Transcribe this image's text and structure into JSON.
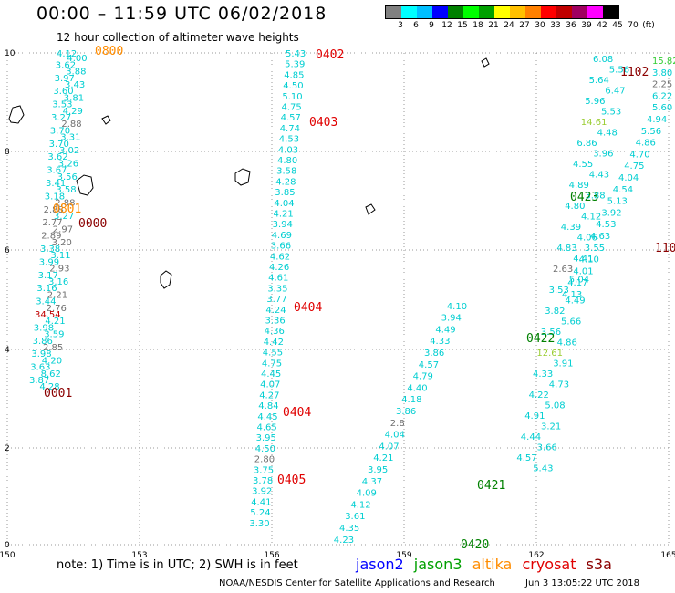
{
  "header": {
    "title": "00:00 – 11:59 UTC 06/02/2018",
    "subtitle": "12 hour collection of altimeter wave heights"
  },
  "legend": {
    "colors": [
      "#808080",
      "#00ffff",
      "#00bfff",
      "#0000ff",
      "#008000",
      "#00ff00",
      "#00a000",
      "#ffff00",
      "#ffc000",
      "#ff8000",
      "#ff0000",
      "#c00000",
      "#a00060",
      "#ff00ff",
      "#000000"
    ],
    "labels": [
      "3",
      "6",
      "9",
      "12",
      "15",
      "18",
      "21",
      "24",
      "27",
      "30",
      "33",
      "36",
      "39",
      "42",
      "45",
      "70",
      "(ft)"
    ]
  },
  "axes": {
    "x_ticks": [
      "150",
      "153",
      "156",
      "159",
      "162",
      "165"
    ],
    "y_ticks": [
      "0",
      "2",
      "4",
      "6",
      "8",
      "10"
    ]
  },
  "islands": [
    [
      [
        10,
        130
      ],
      [
        14,
        118
      ],
      [
        22,
        116
      ],
      [
        26,
        126
      ],
      [
        20,
        135
      ],
      [
        12,
        134
      ]
    ],
    [
      [
        112,
        130
      ],
      [
        118,
        127
      ],
      [
        121,
        132
      ],
      [
        116,
        136
      ]
    ],
    [
      [
        84,
        198
      ],
      [
        92,
        192
      ],
      [
        100,
        194
      ],
      [
        102,
        206
      ],
      [
        96,
        214
      ],
      [
        88,
        212
      ]
    ],
    [
      [
        258,
        190
      ],
      [
        266,
        185
      ],
      [
        274,
        188
      ],
      [
        272,
        200
      ],
      [
        264,
        203
      ],
      [
        258,
        198
      ]
    ],
    [
      [
        176,
        302
      ],
      [
        182,
        297
      ],
      [
        188,
        301
      ],
      [
        186,
        312
      ],
      [
        180,
        316
      ],
      [
        176,
        310
      ]
    ],
    [
      [
        401,
        227
      ],
      [
        407,
        224
      ],
      [
        411,
        230
      ],
      [
        404,
        235
      ]
    ],
    [
      [
        528,
        67
      ],
      [
        533,
        64
      ],
      [
        536,
        70
      ],
      [
        531,
        73
      ]
    ]
  ],
  "annotations": {
    "tracks": [
      {
        "label": "0800",
        "color": "#ff8c00"
      },
      {
        "label": "0801",
        "color": "#ff8c00"
      },
      {
        "label": "0000",
        "color": "#8b0000"
      },
      {
        "label": "0001",
        "color": "#8b0000"
      },
      {
        "label": "0402",
        "color": "#e00000"
      },
      {
        "label": "0403",
        "color": "#e00000"
      },
      {
        "label": "0404",
        "color": "#e00000"
      },
      {
        "label": "0404",
        "color": "#e00000"
      },
      {
        "label": "0405",
        "color": "#e00000"
      },
      {
        "label": "1102",
        "color": "#8b0000"
      },
      {
        "label": "110",
        "color": "#8b0000"
      },
      {
        "label": "0423",
        "color": "#008000"
      },
      {
        "label": "0422",
        "color": "#008000"
      },
      {
        "label": "0421",
        "color": "#008000"
      },
      {
        "label": "0420",
        "color": "#008000"
      }
    ],
    "values": [
      {
        "v": "4.12",
        "c": "#00ced1"
      },
      {
        "v": "4.00",
        "c": "#00ced1"
      },
      {
        "v": "3.62",
        "c": "#00ced1"
      },
      {
        "v": "3.88",
        "c": "#00ced1"
      },
      {
        "v": "3.97",
        "c": "#00ced1"
      },
      {
        "v": "3.43",
        "c": "#00ced1"
      },
      {
        "v": "3.60",
        "c": "#00ced1"
      },
      {
        "v": "3.81",
        "c": "#00ced1"
      },
      {
        "v": "3.53",
        "c": "#00ced1"
      },
      {
        "v": "4.29",
        "c": "#00ced1"
      },
      {
        "v": "3.27",
        "c": "#00ced1"
      },
      {
        "v": "2.88",
        "c": "#707070"
      },
      {
        "v": "3.70",
        "c": "#00ced1"
      },
      {
        "v": "3.31",
        "c": "#00ced1"
      },
      {
        "v": "3.70",
        "c": "#00ced1"
      },
      {
        "v": "3.02",
        "c": "#00ced1"
      },
      {
        "v": "3.62",
        "c": "#00ced1"
      },
      {
        "v": "3.26",
        "c": "#00ced1"
      },
      {
        "v": "3.67",
        "c": "#00ced1"
      },
      {
        "v": "3.56",
        "c": "#00ced1"
      },
      {
        "v": "3.41",
        "c": "#00ced1"
      },
      {
        "v": "3.58",
        "c": "#00ced1"
      },
      {
        "v": "3.18",
        "c": "#00ced1"
      },
      {
        "v": "2.88",
        "c": "#707070"
      },
      {
        "v": "2.88",
        "c": "#707070"
      },
      {
        "v": "3.27",
        "c": "#00ced1"
      },
      {
        "v": "2.77",
        "c": "#707070"
      },
      {
        "v": "2.97",
        "c": "#707070"
      },
      {
        "v": "2.89",
        "c": "#707070"
      },
      {
        "v": "3.20",
        "c": "#707070"
      },
      {
        "v": "3.38",
        "c": "#00ced1"
      },
      {
        "v": "3.11",
        "c": "#00ced1"
      },
      {
        "v": "3.99",
        "c": "#00ced1"
      },
      {
        "v": "2.93",
        "c": "#707070"
      },
      {
        "v": "3.17",
        "c": "#00ced1"
      },
      {
        "v": "3.16",
        "c": "#00ced1"
      },
      {
        "v": "3.16",
        "c": "#00ced1"
      },
      {
        "v": "2.21",
        "c": "#707070"
      },
      {
        "v": "3.44",
        "c": "#00ced1"
      },
      {
        "v": "2.76",
        "c": "#707070"
      },
      {
        "v": "34.54",
        "c": "#c00000"
      },
      {
        "v": "4.21",
        "c": "#00ced1"
      },
      {
        "v": "3.98",
        "c": "#00ced1"
      },
      {
        "v": "3.59",
        "c": "#00ced1"
      },
      {
        "v": "3.86",
        "c": "#00ced1"
      },
      {
        "v": "2.85",
        "c": "#707070"
      },
      {
        "v": "3.98",
        "c": "#00ced1"
      },
      {
        "v": "4.20",
        "c": "#00ced1"
      },
      {
        "v": "3.63",
        "c": "#00ced1"
      },
      {
        "v": "8.62",
        "c": "#00ced1"
      },
      {
        "v": "3.87",
        "c": "#00ced1"
      },
      {
        "v": "4.28",
        "c": "#00ced1"
      },
      {
        "v": "5.43",
        "c": "#00ced1"
      },
      {
        "v": "5.39",
        "c": "#00ced1"
      },
      {
        "v": "4.85",
        "c": "#00ced1"
      },
      {
        "v": "4.50",
        "c": "#00ced1"
      },
      {
        "v": "5.10",
        "c": "#00ced1"
      },
      {
        "v": "4.75",
        "c": "#00ced1"
      },
      {
        "v": "4.57",
        "c": "#00ced1"
      },
      {
        "v": "4.74",
        "c": "#00ced1"
      },
      {
        "v": "4.53",
        "c": "#00ced1"
      },
      {
        "v": "4.03",
        "c": "#00ced1"
      },
      {
        "v": "4.80",
        "c": "#00ced1"
      },
      {
        "v": "3.58",
        "c": "#00ced1"
      },
      {
        "v": "4.28",
        "c": "#00ced1"
      },
      {
        "v": "3.85",
        "c": "#00ced1"
      },
      {
        "v": "4.04",
        "c": "#00ced1"
      },
      {
        "v": "4.21",
        "c": "#00ced1"
      },
      {
        "v": "3.94",
        "c": "#00ced1"
      },
      {
        "v": "4.69",
        "c": "#00ced1"
      },
      {
        "v": "3.66",
        "c": "#00ced1"
      },
      {
        "v": "4.62",
        "c": "#00ced1"
      },
      {
        "v": "4.26",
        "c": "#00ced1"
      },
      {
        "v": "4.61",
        "c": "#00ced1"
      },
      {
        "v": "3.35",
        "c": "#00ced1"
      },
      {
        "v": "3.77",
        "c": "#00ced1"
      },
      {
        "v": "4.24",
        "c": "#00ced1"
      },
      {
        "v": "3.36",
        "c": "#00ced1"
      },
      {
        "v": "4.36",
        "c": "#00ced1"
      },
      {
        "v": "4.42",
        "c": "#00ced1"
      },
      {
        "v": "4.55",
        "c": "#00ced1"
      },
      {
        "v": "4.75",
        "c": "#00ced1"
      },
      {
        "v": "4.45",
        "c": "#00ced1"
      },
      {
        "v": "4.07",
        "c": "#00ced1"
      },
      {
        "v": "4.27",
        "c": "#00ced1"
      },
      {
        "v": "4.84",
        "c": "#00ced1"
      },
      {
        "v": "4.45",
        "c": "#00ced1"
      },
      {
        "v": "4.65",
        "c": "#00ced1"
      },
      {
        "v": "3.95",
        "c": "#00ced1"
      },
      {
        "v": "4.50",
        "c": "#00ced1"
      },
      {
        "v": "2.80",
        "c": "#707070"
      },
      {
        "v": "3.75",
        "c": "#00ced1"
      },
      {
        "v": "3.78",
        "c": "#00ced1"
      },
      {
        "v": "3.92",
        "c": "#00ced1"
      },
      {
        "v": "4.41",
        "c": "#00ced1"
      },
      {
        "v": "5.24",
        "c": "#00ced1"
      },
      {
        "v": "3.30",
        "c": "#00ced1"
      },
      {
        "v": "6.08",
        "c": "#00ced1"
      },
      {
        "v": "5.56",
        "c": "#00ced1"
      },
      {
        "v": "5.64",
        "c": "#00ced1"
      },
      {
        "v": "6.47",
        "c": "#00ced1"
      },
      {
        "v": "5.96",
        "c": "#00ced1"
      },
      {
        "v": "5.53",
        "c": "#00ced1"
      },
      {
        "v": "14.61",
        "c": "#9acd32"
      },
      {
        "v": "4.48",
        "c": "#00ced1"
      },
      {
        "v": "6.86",
        "c": "#00ced1"
      },
      {
        "v": "3.96",
        "c": "#00ced1"
      },
      {
        "v": "4.55",
        "c": "#00ced1"
      },
      {
        "v": "4.43",
        "c": "#00ced1"
      },
      {
        "v": "4.89",
        "c": "#00ced1"
      },
      {
        "v": "3.88",
        "c": "#00ced1"
      },
      {
        "v": "4.80",
        "c": "#00ced1"
      },
      {
        "v": "4.12",
        "c": "#00ced1"
      },
      {
        "v": "4.39",
        "c": "#00ced1"
      },
      {
        "v": "4.06",
        "c": "#00ced1"
      },
      {
        "v": "4.83",
        "c": "#00ced1"
      },
      {
        "v": "4.41",
        "c": "#00ced1"
      },
      {
        "v": "2.63",
        "c": "#707070"
      },
      {
        "v": "5.04",
        "c": "#00ced1"
      },
      {
        "v": "3.53",
        "c": "#00ced1"
      },
      {
        "v": "4.49",
        "c": "#00ced1"
      },
      {
        "v": "3.82",
        "c": "#00ced1"
      },
      {
        "v": "5.66",
        "c": "#00ced1"
      },
      {
        "v": "3.56",
        "c": "#00ced1"
      },
      {
        "v": "4.86",
        "c": "#00ced1"
      },
      {
        "v": "12.61",
        "c": "#9acd32"
      },
      {
        "v": "3.91",
        "c": "#00ced1"
      },
      {
        "v": "4.33",
        "c": "#00ced1"
      },
      {
        "v": "4.73",
        "c": "#00ced1"
      },
      {
        "v": "4.22",
        "c": "#00ced1"
      },
      {
        "v": "5.08",
        "c": "#00ced1"
      },
      {
        "v": "4.91",
        "c": "#00ced1"
      },
      {
        "v": "3.21",
        "c": "#00ced1"
      },
      {
        "v": "4.44",
        "c": "#00ced1"
      },
      {
        "v": "3.66",
        "c": "#00ced1"
      },
      {
        "v": "4.57",
        "c": "#00ced1"
      },
      {
        "v": "5.43",
        "c": "#00ced1"
      },
      {
        "v": "15.82",
        "c": "#32cd32"
      },
      {
        "v": "3.80",
        "c": "#00ced1"
      },
      {
        "v": "2.25",
        "c": "#707070"
      },
      {
        "v": "6.22",
        "c": "#00ced1"
      },
      {
        "v": "5.60",
        "c": "#00ced1"
      },
      {
        "v": "4.94",
        "c": "#00ced1"
      },
      {
        "v": "5.56",
        "c": "#00ced1"
      },
      {
        "v": "4.86",
        "c": "#00ced1"
      },
      {
        "v": "4.70",
        "c": "#00ced1"
      },
      {
        "v": "4.75",
        "c": "#00ced1"
      },
      {
        "v": "4.04",
        "c": "#00ced1"
      },
      {
        "v": "4.54",
        "c": "#00ced1"
      },
      {
        "v": "5.13",
        "c": "#00ced1"
      },
      {
        "v": "3.92",
        "c": "#00ced1"
      },
      {
        "v": "4.53",
        "c": "#00ced1"
      },
      {
        "v": "4.63",
        "c": "#00ced1"
      },
      {
        "v": "3.55",
        "c": "#00ced1"
      },
      {
        "v": "4.10",
        "c": "#00ced1"
      },
      {
        "v": "4.01",
        "c": "#00ced1"
      },
      {
        "v": "4.17",
        "c": "#00ced1"
      },
      {
        "v": "4.13",
        "c": "#00ced1"
      },
      {
        "v": "4.10",
        "c": "#00ced1"
      },
      {
        "v": "3.94",
        "c": "#00ced1"
      },
      {
        "v": "4.49",
        "c": "#00ced1"
      },
      {
        "v": "4.33",
        "c": "#00ced1"
      },
      {
        "v": "3.86",
        "c": "#00ced1"
      },
      {
        "v": "4.57",
        "c": "#00ced1"
      },
      {
        "v": "4.79",
        "c": "#00ced1"
      },
      {
        "v": "4.40",
        "c": "#00ced1"
      },
      {
        "v": "4.18",
        "c": "#00ced1"
      },
      {
        "v": "3.86",
        "c": "#00ced1"
      },
      {
        "v": "2.8",
        "c": "#707070"
      },
      {
        "v": "4.04",
        "c": "#00ced1"
      },
      {
        "v": "4.07",
        "c": "#00ced1"
      },
      {
        "v": "4.21",
        "c": "#00ced1"
      },
      {
        "v": "3.95",
        "c": "#00ced1"
      },
      {
        "v": "4.37",
        "c": "#00ced1"
      },
      {
        "v": "4.09",
        "c": "#00ced1"
      },
      {
        "v": "4.12",
        "c": "#00ced1"
      },
      {
        "v": "3.61",
        "c": "#00ced1"
      },
      {
        "v": "4.35",
        "c": "#00ced1"
      },
      {
        "v": "4.23",
        "c": "#00ced1"
      }
    ]
  },
  "note": "note: 1) Time is in UTC; 2) SWH is in feet",
  "satellites": [
    {
      "name": "jason2",
      "color": "#0000ff"
    },
    {
      "name": "jason3",
      "color": "#00a000"
    },
    {
      "name": "altika",
      "color": "#ff8c00"
    },
    {
      "name": "cryosat",
      "color": "#e00000"
    },
    {
      "name": "s3a",
      "color": "#8b0000"
    }
  ],
  "footer": {
    "credit": "NOAA/NESDIS Center for Satellite Applications and Research",
    "timestamp": "Jun  3 13:05:22 UTC 2018"
  }
}
